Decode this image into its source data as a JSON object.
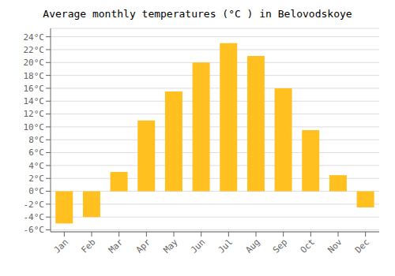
{
  "chart_data": {
    "type": "bar",
    "title": "Average monthly temperatures (°C ) in Belovodskoye",
    "categories": [
      "Jan",
      "Feb",
      "Mar",
      "Apr",
      "May",
      "Jun",
      "Jul",
      "Aug",
      "Sep",
      "Oct",
      "Nov",
      "Dec"
    ],
    "values": [
      -5.0,
      -4.0,
      3.0,
      11.0,
      15.5,
      20.0,
      23.0,
      21.0,
      16.0,
      9.5,
      2.5,
      -2.5
    ],
    "color": "#FFC020",
    "ylim": [
      -6.3,
      25.3
    ],
    "yticks": [
      {
        "value": -6,
        "label": "-6°C"
      },
      {
        "value": -4,
        "label": "-4°C"
      },
      {
        "value": -2,
        "label": "-2°C"
      },
      {
        "value": 0,
        "label": "0°C"
      },
      {
        "value": 2,
        "label": "2°C"
      },
      {
        "value": 4,
        "label": "4°C"
      },
      {
        "value": 6,
        "label": "6°C"
      },
      {
        "value": 8,
        "label": "8°C"
      },
      {
        "value": 10,
        "label": "10°C"
      },
      {
        "value": 12,
        "label": "12°C"
      },
      {
        "value": 14,
        "label": "14°C"
      },
      {
        "value": 16,
        "label": "16°C"
      },
      {
        "value": 18,
        "label": "18°C"
      },
      {
        "value": 20,
        "label": "20°C"
      },
      {
        "value": 22,
        "label": "22°C"
      },
      {
        "value": 24,
        "label": "24°C"
      }
    ],
    "grid": true
  }
}
